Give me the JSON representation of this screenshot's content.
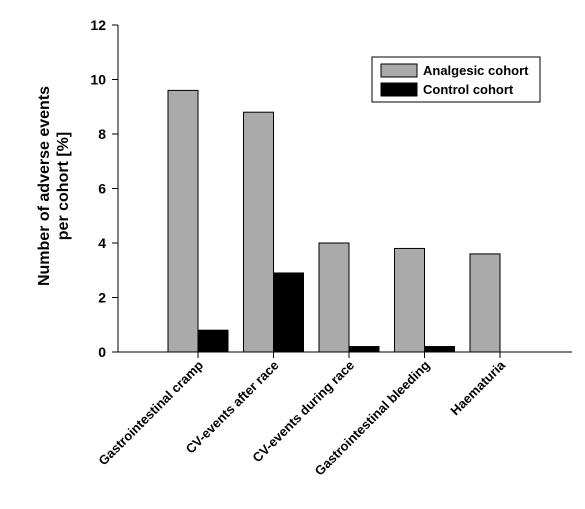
{
  "chart_data": {
    "type": "bar",
    "categories": [
      "Gastrointestinal cramp",
      "CV-events after race",
      "CV-events during race",
      "Gastrointestinal bleeding",
      "Haematuria"
    ],
    "series": [
      {
        "name": "Analgesic cohort",
        "values": [
          9.6,
          8.8,
          4.0,
          3.8,
          3.6
        ],
        "color": "#aaaaaa"
      },
      {
        "name": "Control cohort",
        "values": [
          0.8,
          2.9,
          0.2,
          0.2,
          0.0
        ],
        "color": "#000000"
      }
    ],
    "ylabel_lines": [
      "Number of adverse events",
      "per cohort [%]"
    ],
    "ylim": [
      0,
      12
    ],
    "yticks": [
      0,
      2,
      4,
      6,
      8,
      10,
      12
    ],
    "legend_position": "top-right",
    "grid": false
  }
}
